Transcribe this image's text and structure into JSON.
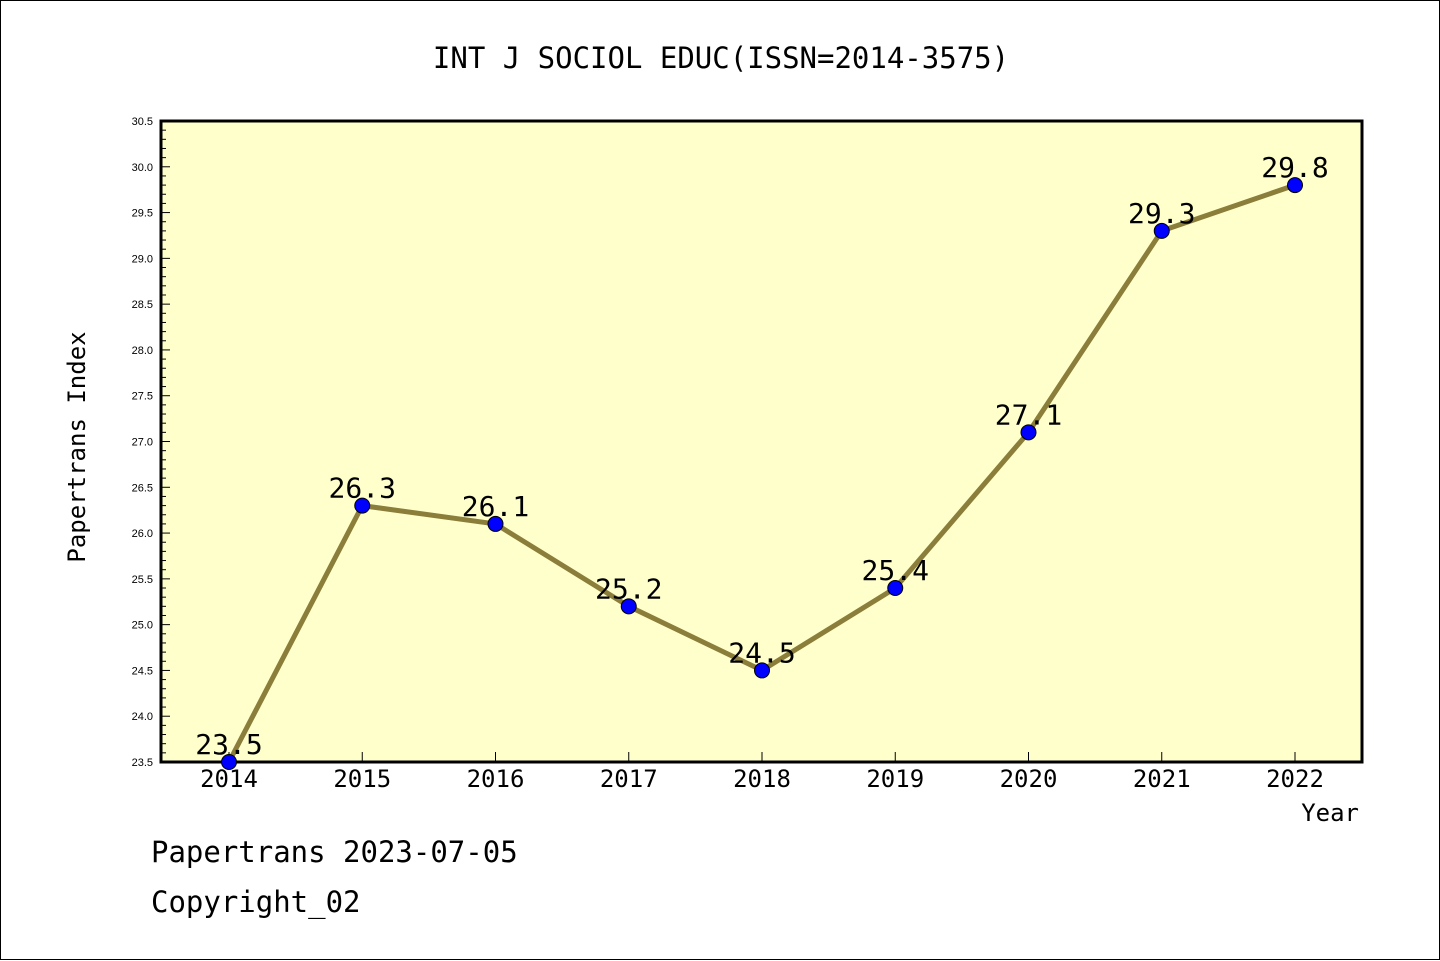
{
  "chart_data": {
    "type": "line",
    "title": "INT J SOCIOL EDUC(ISSN=2014-3575)",
    "xlabel": "Year",
    "ylabel": "Papertrans Index",
    "x": [
      "2014",
      "2015",
      "2016",
      "2017",
      "2018",
      "2019",
      "2020",
      "2021",
      "2022"
    ],
    "series": [
      {
        "values": [
          23.5,
          26.3,
          26.1,
          25.2,
          24.5,
          25.4,
          27.1,
          29.3,
          29.8
        ],
        "data_labels": [
          "23.5",
          "26.3",
          "26.1",
          "25.2",
          "24.5",
          "25.4",
          "27.1",
          "29.3",
          "29.8"
        ]
      }
    ],
    "ylim": [
      23.5,
      30.5
    ],
    "yticks": [
      "23.5",
      "24.0",
      "24.5",
      "25.0",
      "25.5",
      "26.0",
      "26.5",
      "27.0",
      "27.5",
      "28.0",
      "28.5",
      "29.0",
      "29.5",
      "30.0",
      "30.5"
    ],
    "grid": false,
    "colors": {
      "plot_background": "#ffffcc",
      "line": "#8b7d3a",
      "marker": "#0000ff"
    }
  },
  "footer": {
    "date_text": "Papertrans 2023-07-05",
    "copyright_text": "Copyright_02"
  }
}
